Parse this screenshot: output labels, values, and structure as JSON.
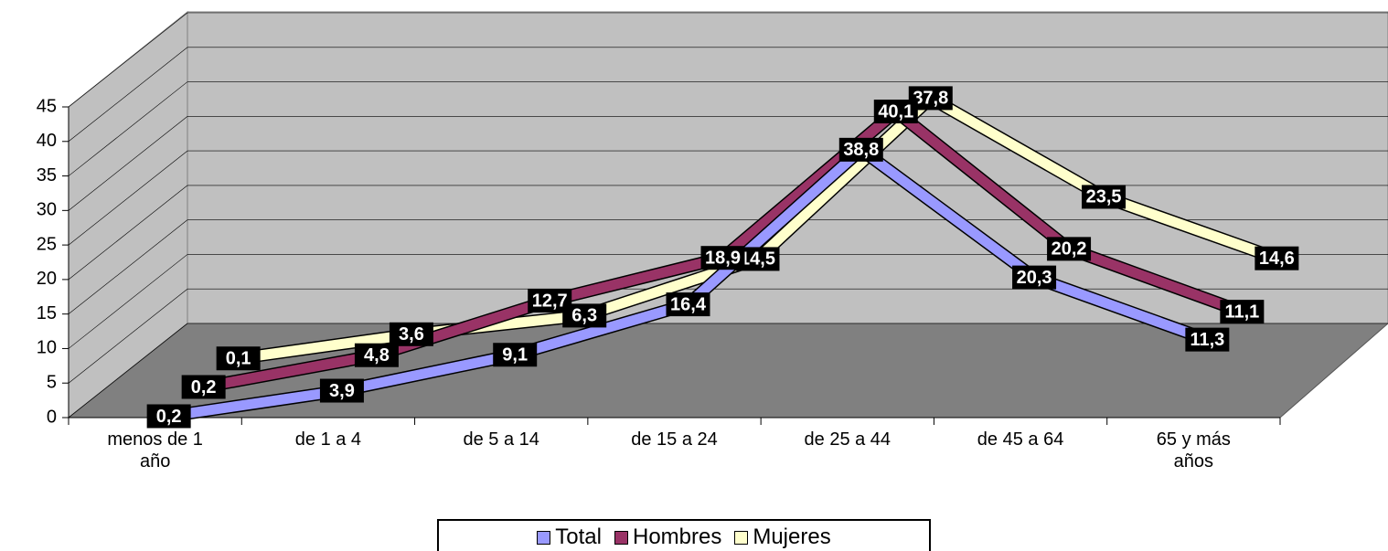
{
  "chart_data": {
    "type": "line3d",
    "categories": [
      "menos de 1 año",
      "de 1 a 4",
      "de 5 a 14",
      "de 15 a 24",
      "de 25 a 44",
      "de 45 a 64",
      "65 y más años"
    ],
    "series": [
      {
        "name": "Total",
        "color": "#9999ff",
        "values": [
          0.2,
          3.9,
          9.1,
          16.4,
          38.8,
          20.3,
          11.3
        ],
        "value_labels": [
          "0,2",
          "3,9",
          "9,1",
          "16,4",
          "38,8",
          "20,3",
          "11,3"
        ]
      },
      {
        "name": "Hombres",
        "color": "#993366",
        "values": [
          0.2,
          4.8,
          12.7,
          18.9,
          40.1,
          20.2,
          11.1
        ],
        "value_labels": [
          "0,2",
          "4,8",
          "12,7",
          "18,9",
          "40,1",
          "20,2",
          "11,1"
        ]
      },
      {
        "name": "Mujeres",
        "color": "#ffffcc",
        "values": [
          0.1,
          3.6,
          6.3,
          14.5,
          37.8,
          23.5,
          14.6
        ],
        "value_labels": [
          "0,1",
          "3,6",
          "6,3",
          "14,5",
          "37,8",
          "23,5",
          "14,6"
        ]
      }
    ],
    "ylim": [
      0,
      45
    ],
    "yticks": [
      0,
      5,
      10,
      15,
      20,
      25,
      30,
      35,
      40,
      45
    ],
    "grid": true,
    "legend": "bottom"
  }
}
